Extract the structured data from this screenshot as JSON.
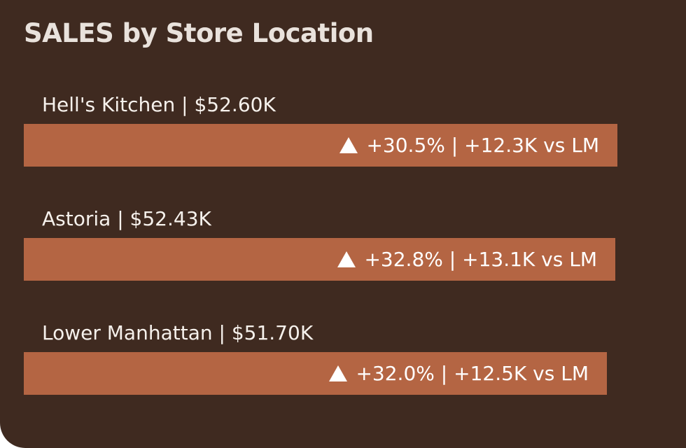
{
  "chart_data": {
    "type": "bar",
    "title": "SALES by Store Location",
    "categories": [
      "Hell's Kitchen",
      "Astoria",
      "Lower Manhattan"
    ],
    "values": [
      52.6,
      52.43,
      51.7
    ],
    "unit": "$K",
    "labels": [
      "Hell's Kitchen | $52.60K",
      "Astoria | $52.43K",
      "Lower Manhattan | $51.70K"
    ],
    "change_labels": [
      "+30.5% | +12.3K vs LM",
      "+32.8% | +13.1K vs LM",
      "+32.0% | +12.5K vs LM"
    ],
    "change_pct": [
      30.5,
      32.8,
      32.0
    ],
    "change_abs_k": [
      12.3,
      13.1,
      12.5
    ],
    "trend_icon": "triangle-up-icon",
    "bar_color": "#b46543",
    "background_color": "#3f2a20"
  }
}
